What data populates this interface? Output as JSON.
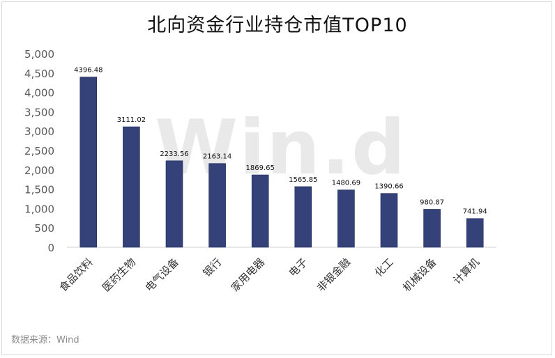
{
  "chart_data": {
    "type": "bar",
    "title": "北向资金行业持仓市值TOP10",
    "categories": [
      "食品饮料",
      "医药生物",
      "电气设备",
      "银行",
      "家用电器",
      "电子",
      "非银金融",
      "化工",
      "机械设备",
      "计算机"
    ],
    "values": [
      4396.48,
      3111.02,
      2233.56,
      2163.14,
      1869.65,
      1565.85,
      1480.69,
      1390.66,
      980.87,
      741.94
    ],
    "value_labels": [
      "4396.48",
      "3111.02",
      "2233.56",
      "2163.14",
      "1869.65",
      "1565.85",
      "1480.69",
      "1390.66",
      "980.87",
      "741.94"
    ],
    "yticks": [
      "0",
      "500",
      "1,000",
      "1,500",
      "2,000",
      "2,500",
      "3,000",
      "3,500",
      "4,000",
      "4,500",
      "5,000"
    ],
    "ylim": [
      0,
      5000
    ],
    "xlabel": "",
    "ylabel": "",
    "grid": false,
    "bar_color": "#35427a"
  },
  "watermark": "Win.d",
  "source_note": "数据来源：Wind"
}
